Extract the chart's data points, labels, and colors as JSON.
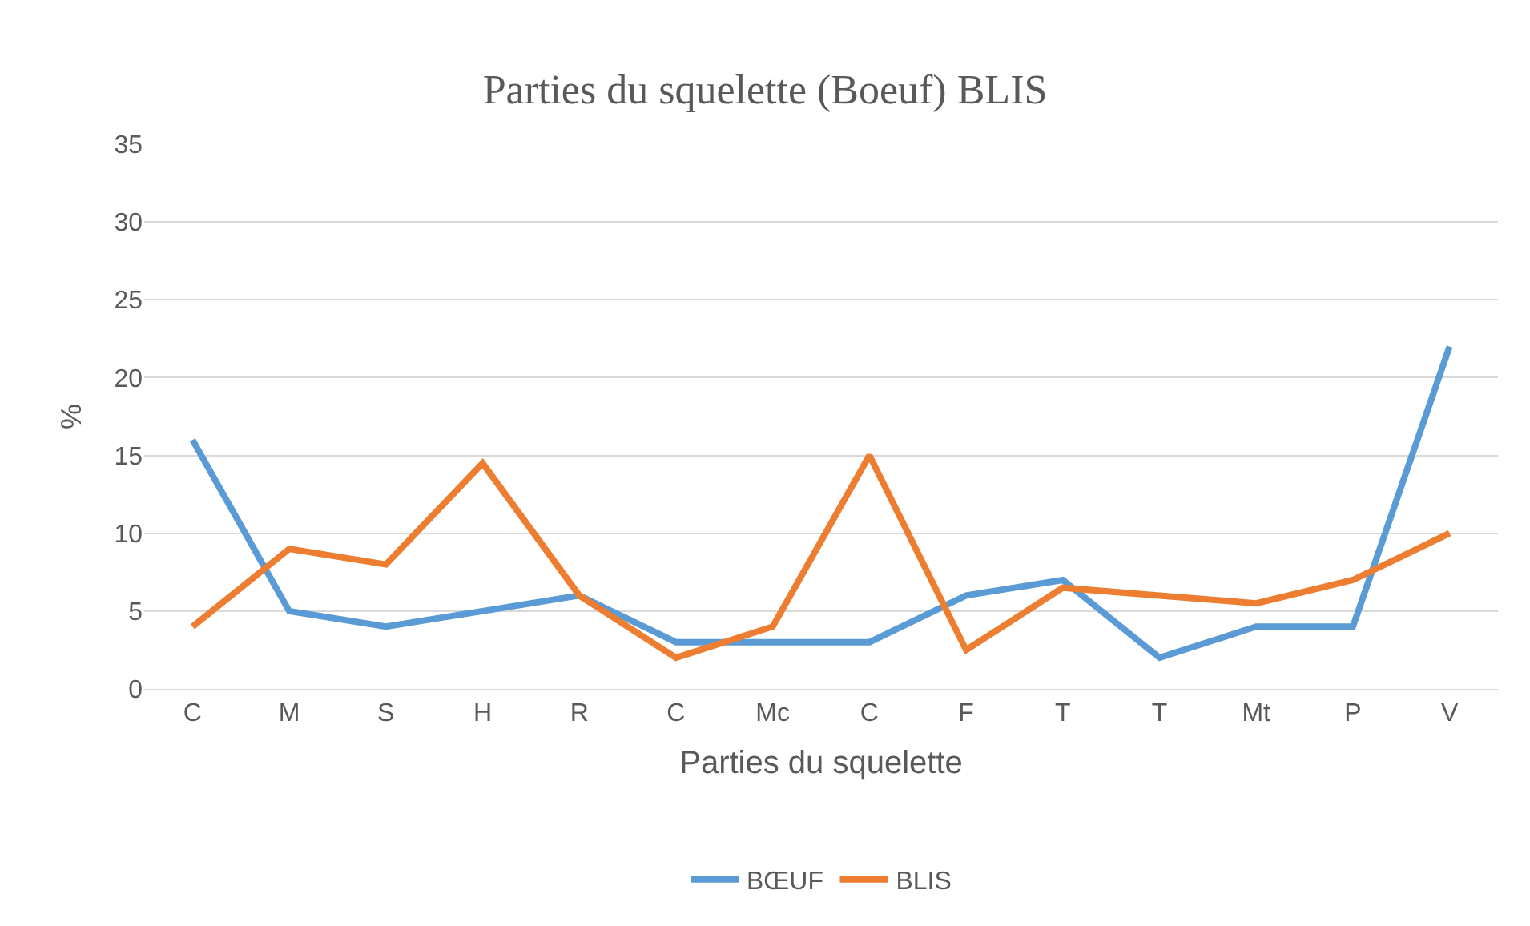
{
  "chart_data": {
    "type": "line",
    "title": "Parties du squelette (Boeuf) BLIS",
    "xlabel": "Parties du squelette",
    "ylabel": "%",
    "categories": [
      "C",
      "M",
      "S",
      "H",
      "R",
      "C",
      "Mc",
      "C",
      "F",
      "T",
      "T",
      "Mt",
      "P",
      "V"
    ],
    "series": [
      {
        "name": "BŒUF",
        "color": "#5b9bd5",
        "values": [
          16,
          5,
          4,
          5,
          6,
          3,
          3,
          3,
          6,
          7,
          2,
          4,
          4,
          22
        ]
      },
      {
        "name": "BLIS",
        "color": "#ed7d31",
        "values": [
          4,
          9,
          8,
          14.5,
          6,
          2,
          4,
          15,
          2.5,
          6.5,
          6,
          5.5,
          7,
          10
        ]
      }
    ],
    "ylim": [
      0,
      35
    ],
    "yticks": [
      0,
      5,
      10,
      15,
      20,
      25,
      30,
      35
    ],
    "grid": "y",
    "legend": "bottom",
    "marker": "none",
    "line_style": "solid"
  }
}
